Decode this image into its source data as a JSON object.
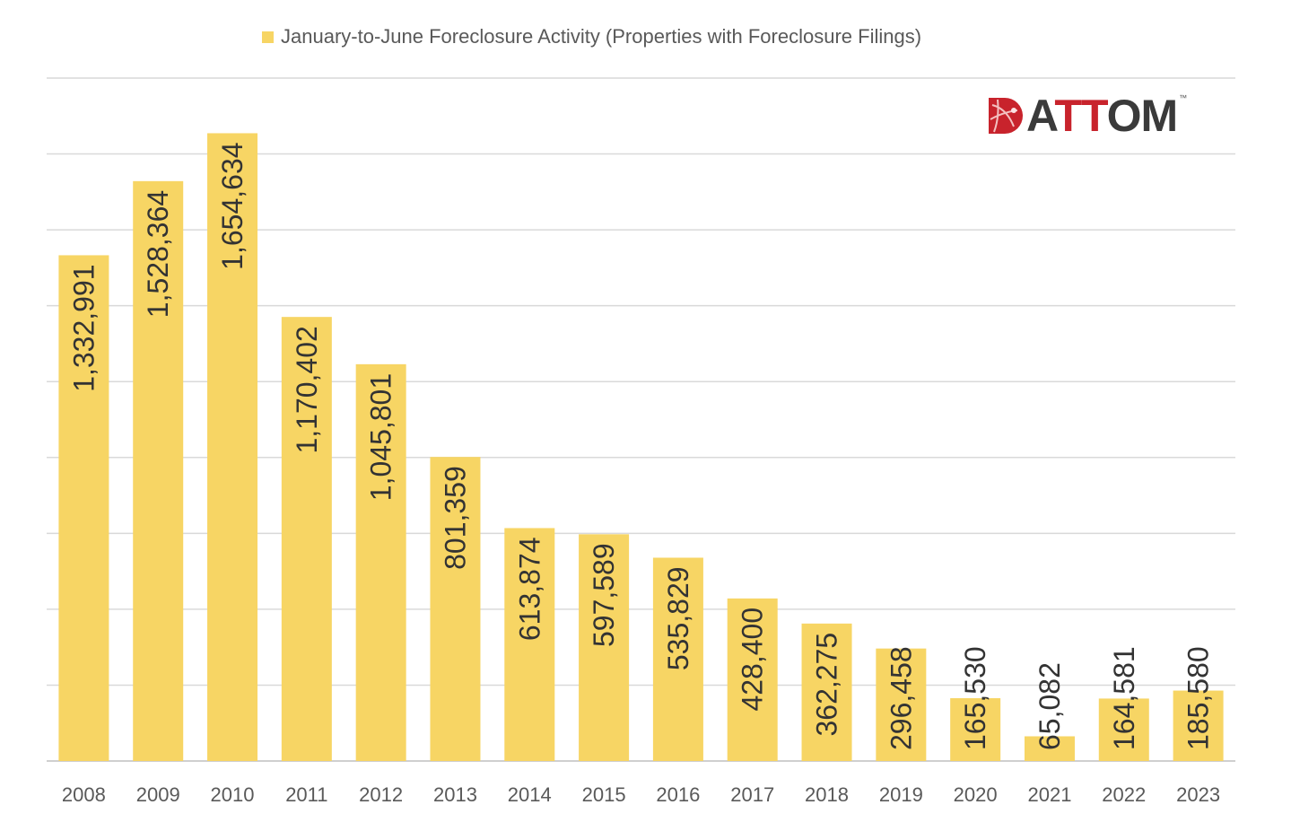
{
  "chart_data": {
    "type": "bar",
    "title": "",
    "legend": {
      "label": "January-to-June Foreclosure Activity (Properties with Foreclosure Filings)",
      "position": "top"
    },
    "categories": [
      "2008",
      "2009",
      "2010",
      "2011",
      "2012",
      "2013",
      "2014",
      "2015",
      "2016",
      "2017",
      "2018",
      "2019",
      "2020",
      "2021",
      "2022",
      "2023"
    ],
    "series": [
      {
        "name": "January-to-June Foreclosure Activity (Properties with Foreclosure Filings)",
        "values": [
          1332991,
          1528364,
          1654634,
          1170402,
          1045801,
          801359,
          613874,
          597589,
          535829,
          428400,
          362275,
          296458,
          165530,
          65082,
          164581,
          185580
        ]
      }
    ],
    "data_labels": [
      "1,332,991",
      "1,528,364",
      "1,654,634",
      "1,170,402",
      "1,045,801",
      "801,359",
      "613,874",
      "597,589",
      "535,829",
      "428,400",
      "362,275",
      "296,458",
      "165,530",
      "65,082",
      "164,581",
      "185,580"
    ],
    "ylim": [
      0,
      1800000
    ],
    "y_gridline_step": 200000,
    "y_tick_labels_shown": false,
    "grid": true,
    "xlabel": "",
    "ylabel": "",
    "colors": {
      "bar": "#F7D564",
      "grid": "#D9D9D9",
      "text": "#595959"
    }
  },
  "logo": {
    "text": "ATTOM",
    "trademark": "™",
    "colors": {
      "red": "#C8232C",
      "dark": "#3A3A3A"
    }
  }
}
